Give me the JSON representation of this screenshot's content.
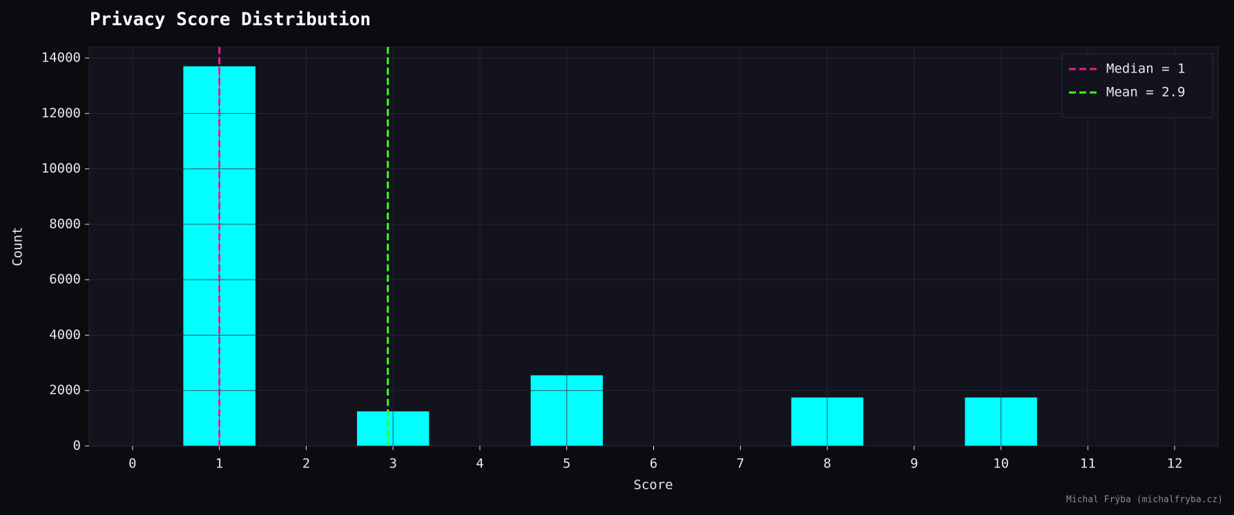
{
  "chart_data": {
    "type": "bar",
    "title": "Privacy Score Distribution",
    "x_label": "Score",
    "y_label": "Count",
    "x": [
      1,
      3,
      5,
      8,
      10
    ],
    "values": [
      13700,
      1250,
      2550,
      1750,
      1750
    ],
    "color": "#00ffff",
    "xlim": [
      -0.5,
      12.5
    ],
    "xticks": [
      0,
      1,
      2,
      3,
      4,
      5,
      6,
      7,
      8,
      9,
      10,
      11,
      12
    ],
    "ylim": [
      0,
      14400
    ],
    "yticks": [
      0,
      2000,
      4000,
      6000,
      8000,
      10000,
      12000,
      14000
    ],
    "grid": true,
    "legend": "upper right",
    "reference_lines": [
      {
        "label": "Median = 1",
        "value": 1,
        "color": "#ff1493"
      },
      {
        "label": "Mean = 2.9",
        "value": 2.94,
        "color": "#39ff14"
      }
    ],
    "credit": "Michal Frýba (michalfryba.cz)"
  }
}
